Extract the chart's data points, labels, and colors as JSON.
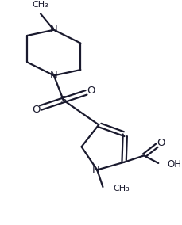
{
  "bg_color": "#ffffff",
  "line_color": "#1a1a2e",
  "line_width": 1.6,
  "font_size": 8.5,
  "figsize": [
    2.29,
    2.84
  ],
  "dpi": 100,
  "xlim": [
    0,
    9
  ],
  "ylim": [
    0,
    11.2
  ]
}
